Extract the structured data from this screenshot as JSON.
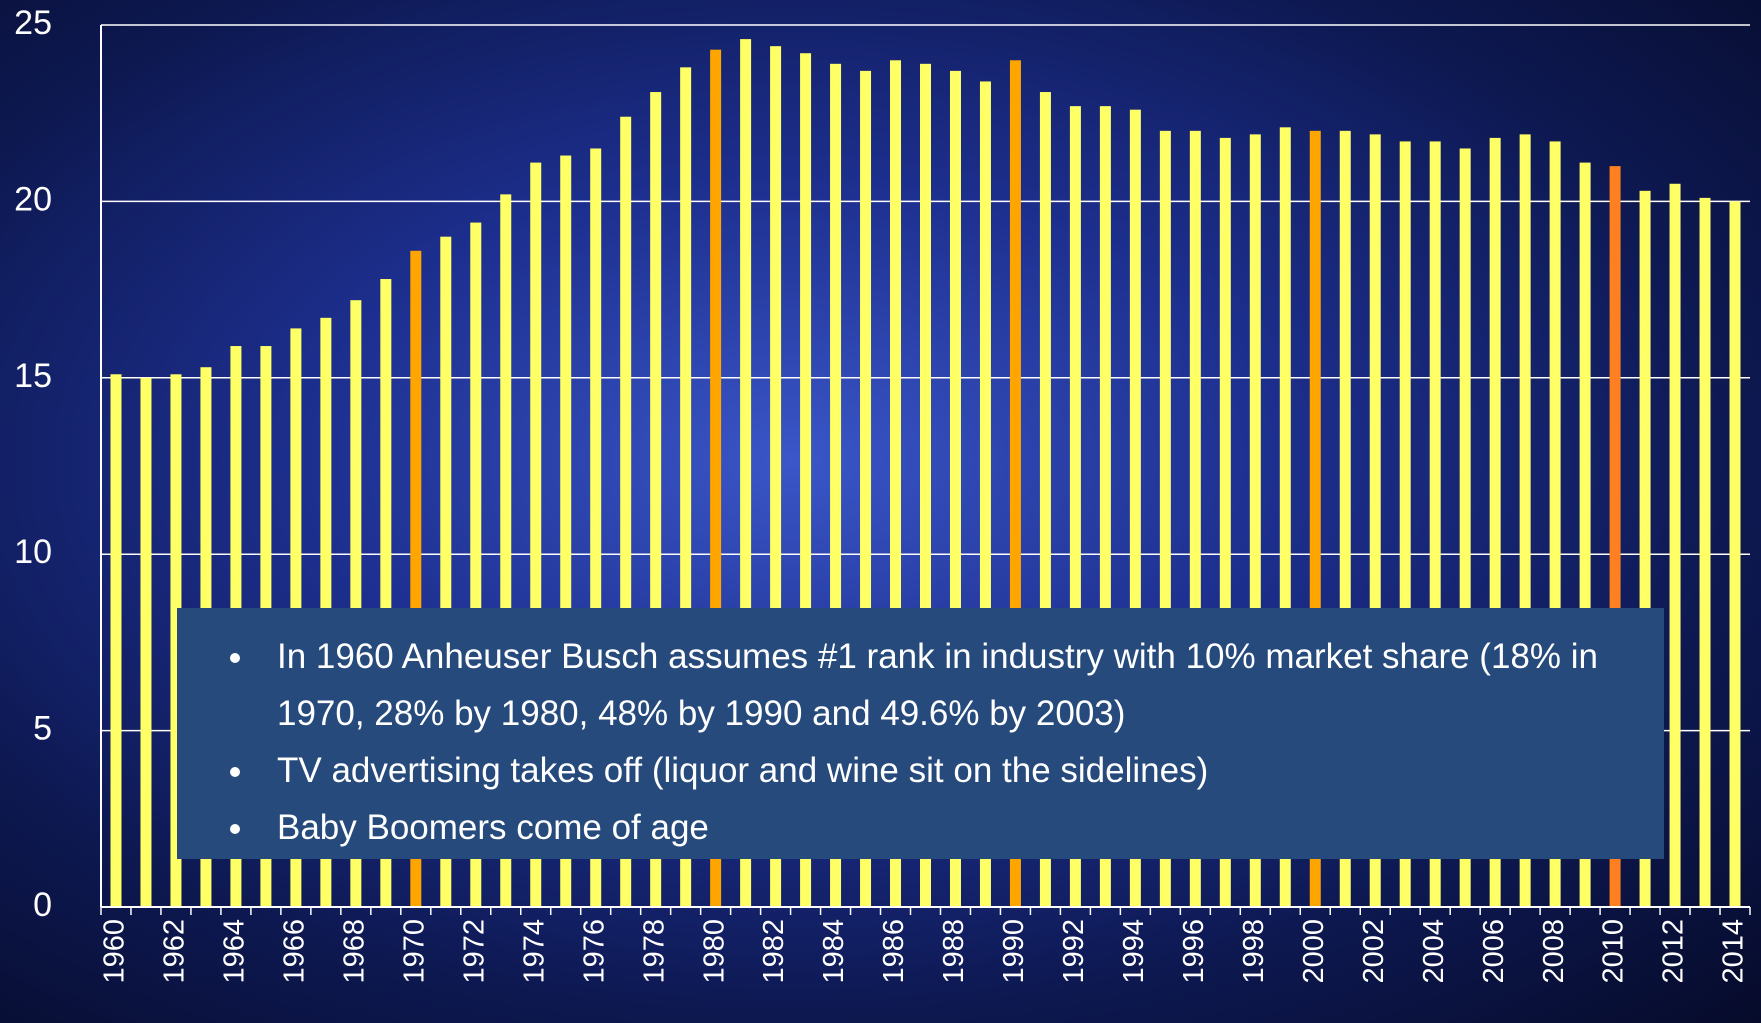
{
  "chart_data": {
    "type": "bar",
    "categories": [
      "1960",
      null,
      "1962",
      null,
      "1964",
      null,
      "1966",
      null,
      "1968",
      null,
      "1970",
      null,
      "1972",
      null,
      "1974",
      null,
      "1976",
      null,
      "1978",
      null,
      "1980",
      null,
      "1982",
      null,
      "1984",
      null,
      "1986",
      null,
      "1988",
      null,
      "1990",
      null,
      "1992",
      null,
      "1994",
      null,
      "1996",
      null,
      "1998",
      null,
      "2000",
      null,
      "2002",
      null,
      "2004",
      null,
      "2006",
      null,
      "2008",
      null,
      "2010",
      null,
      "2012",
      null,
      "2014"
    ],
    "values": [
      15.1,
      15.0,
      15.1,
      15.3,
      15.9,
      15.9,
      16.4,
      16.7,
      17.2,
      17.8,
      18.6,
      19.0,
      19.4,
      20.2,
      21.1,
      21.3,
      21.5,
      22.4,
      23.1,
      23.8,
      24.3,
      24.6,
      24.4,
      24.2,
      23.9,
      23.7,
      24.0,
      23.9,
      23.7,
      23.4,
      24.0,
      23.1,
      22.7,
      22.7,
      22.6,
      22.0,
      22.0,
      21.8,
      21.9,
      22.1,
      22.0,
      22.0,
      21.9,
      21.7,
      21.7,
      21.5,
      21.8,
      21.9,
      21.7,
      21.1,
      21.0,
      20.3,
      20.5,
      20.1,
      20.0
    ],
    "color": "#ffff66",
    "colors": [
      "#ffff66",
      "#ffff66",
      "#ffff66",
      "#ffff66",
      "#ffff66",
      "#ffff66",
      "#ffff66",
      "#ffff66",
      "#ffff66",
      "#ffff66",
      "#ffa500",
      "#ffff66",
      "#ffff66",
      "#ffff66",
      "#ffff66",
      "#ffff66",
      "#ffff66",
      "#ffff66",
      "#ffff66",
      "#ffff66",
      "#ffa500",
      "#ffff66",
      "#ffff66",
      "#ffff66",
      "#ffff66",
      "#ffff66",
      "#ffff66",
      "#ffff66",
      "#ffff66",
      "#ffff66",
      "#ffa500",
      "#ffff66",
      "#ffff66",
      "#ffff66",
      "#ffff66",
      "#ffff66",
      "#ffff66",
      "#ffff66",
      "#ffff66",
      "#ffff66",
      "#ffa500",
      "#ffff66",
      "#ffff66",
      "#ffff66",
      "#ffff66",
      "#ffff66",
      "#ffff66",
      "#ffff66",
      "#ffff66",
      "#ffff66",
      "#ff8020",
      "#ffff66",
      "#ffff66",
      "#ffff66",
      "#ffff66"
    ],
    "ylim": [
      0,
      25
    ],
    "yticks": [
      0,
      5,
      10,
      15,
      20,
      25
    ],
    "grid": true,
    "annotation": {
      "bullets": [
        "In 1960 Anheuser Busch assumes #1 rank in industry with 10% market share (18% in 1970, 28% by 1980, 48% by 1990 and 49.6% by 2003)",
        "TV advertising takes off (liquor and wine sit on the sidelines)",
        "Baby Boomers come of age"
      ]
    }
  }
}
